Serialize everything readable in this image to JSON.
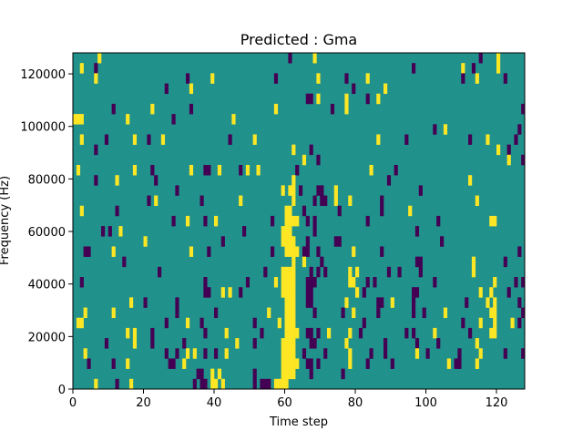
{
  "chart_data": {
    "type": "heatmap",
    "title": "Predicted : Gma",
    "xlabel": "Time step",
    "ylabel": "Frequency (Hz)",
    "xlim": [
      0,
      128
    ],
    "ylim": [
      0,
      128000
    ],
    "xticks": [
      0,
      20,
      40,
      60,
      80,
      100,
      120
    ],
    "yticks": [
      0,
      20000,
      40000,
      60000,
      80000,
      100000,
      120000
    ],
    "n_time_steps": 128,
    "n_freq_bins": 33,
    "colormap": {
      "low": "#440154",
      "mid": "#21918c",
      "high": "#fde725"
    },
    "value_legend": {
      "p": -1,
      "background": 0,
      "y": 1
    },
    "rows_top_to_bottom": [
      {
        "y": [
          7,
          68,
          120
        ],
        "p": [
          61,
          115
        ]
      },
      {
        "y": [
          2,
          110,
          120
        ],
        "p": [
          6,
          96,
          113
        ]
      },
      {
        "y": [
          6,
          39,
          69,
          83,
          114
        ],
        "p": [
          32,
          57,
          77,
          110,
          122
        ]
      },
      {
        "y": [
          33,
          88
        ],
        "p": [
          26,
          79
        ]
      },
      {
        "y": [
          69,
          77,
          86
        ],
        "p": [
          66,
          67,
          83
        ]
      },
      {
        "y": [
          22,
          57,
          77
        ],
        "p": [
          11,
          33,
          73,
          127
        ]
      },
      {
        "y": [
          0,
          1,
          2,
          15,
          45
        ],
        "p": [
          28
        ]
      },
      {
        "y": [
          105
        ],
        "p": [
          102,
          126
        ]
      },
      {
        "y": [
          2,
          17,
          25,
          51,
          86,
          117
        ],
        "p": [
          9,
          21,
          44,
          94,
          112,
          125
        ]
      },
      {
        "y": [
          62,
          120
        ],
        "p": [
          6,
          67,
          123
        ]
      },
      {
        "y": [
          65,
          123
        ],
        "p": [
          69,
          127
        ]
      },
      {
        "y": [
          1,
          17,
          33,
          41,
          49,
          52,
          84
        ],
        "p": [
          22,
          37,
          38,
          47,
          63,
          91
        ]
      },
      {
        "y": [
          12,
          62,
          112
        ],
        "p": [
          6,
          23,
          89
        ]
      },
      {
        "y": [
          59,
          61,
          62,
          74
        ],
        "p": [
          29,
          64,
          69,
          70,
          98
        ]
      },
      {
        "y": [
          23,
          47,
          62,
          74,
          78,
          114
        ],
        "p": [
          21,
          36,
          68,
          70,
          71,
          87
        ]
      },
      {
        "y": [
          2,
          60,
          61,
          95
        ],
        "p": [
          12,
          65,
          75,
          87
        ]
      },
      {
        "y": [
          32,
          40,
          60,
          61,
          62,
          63,
          118,
          119
        ],
        "p": [
          28,
          37,
          56,
          66,
          68,
          83,
          103
        ]
      },
      {
        "y": [
          13,
          59,
          60,
          61
        ],
        "p": [
          8,
          10,
          48,
          68,
          97
        ]
      },
      {
        "y": [
          20,
          59,
          60,
          61,
          62
        ],
        "p": [
          42,
          66,
          74,
          75,
          104
        ]
      },
      {
        "y": [
          11,
          33,
          60,
          61,
          62,
          63,
          79
        ],
        "p": [
          3,
          4,
          38,
          56,
          65,
          66,
          69,
          87,
          126
        ]
      },
      {
        "y": [
          62,
          65,
          113
        ],
        "p": [
          14,
          70,
          97,
          98,
          122
        ]
      },
      {
        "y": [
          59,
          60,
          61,
          62,
          78,
          80,
          113
        ],
        "p": [
          24,
          54,
          67,
          69,
          71,
          89,
          92,
          98
        ]
      },
      {
        "y": [
          57,
          59,
          60,
          61,
          62,
          78,
          79,
          119
        ],
        "p": [
          2,
          37,
          49,
          66,
          67,
          68,
          83,
          85,
          102,
          125,
          127
        ]
      },
      {
        "y": [
          42,
          44,
          59,
          60,
          61,
          62,
          80,
          115,
          118
        ],
        "p": [
          37,
          38,
          47,
          66,
          67,
          82,
          96,
          97,
          123
        ]
      },
      {
        "y": [
          16,
          60,
          61,
          62,
          77,
          90,
          117,
          119
        ],
        "p": [
          20,
          29,
          66,
          67,
          86,
          87,
          96,
          111,
          126
        ]
      },
      {
        "y": [
          3,
          11,
          55,
          60,
          61,
          62,
          79,
          105,
          118,
          119
        ],
        "p": [
          29,
          40,
          68,
          76,
          86,
          96,
          99,
          127
        ]
      },
      {
        "y": [
          1,
          2,
          32,
          58,
          60,
          61,
          62,
          115,
          119,
          124
        ],
        "p": [
          26,
          36,
          51,
          82,
          110,
          126
        ]
      },
      {
        "y": [
          15,
          17,
          43,
          60,
          61,
          62,
          63,
          72,
          78,
          102,
          118,
          119
        ],
        "p": [
          22,
          37,
          53,
          66,
          67,
          69,
          81,
          94,
          96,
          112
        ]
      },
      {
        "y": [
          17,
          46,
          59,
          60,
          61,
          62,
          77,
          114
        ],
        "p": [
          9,
          22,
          31,
          51,
          67,
          68,
          88,
          97,
          103
        ]
      },
      {
        "y": [
          3,
          32,
          34,
          43,
          59,
          60,
          61,
          62,
          78,
          97,
          115
        ],
        "p": [
          26,
          29,
          37,
          40,
          65,
          71,
          84,
          88,
          100,
          109,
          122,
          127
        ]
      },
      {
        "y": [
          15,
          31,
          59,
          60,
          61,
          62,
          63,
          78,
          106,
          114
        ],
        "p": [
          4,
          11,
          27,
          28,
          66,
          67,
          69,
          83,
          90,
          108,
          109
        ]
      },
      {
        "y": [
          39,
          41,
          59,
          60,
          61,
          62
        ],
        "p": [
          35,
          36,
          51,
          67,
          76
        ]
      },
      {
        "y": [
          6,
          16,
          39,
          40,
          42,
          57,
          58,
          59,
          60
        ],
        "p": [
          12,
          34,
          36,
          37,
          51,
          53,
          54,
          55
        ]
      }
    ]
  }
}
